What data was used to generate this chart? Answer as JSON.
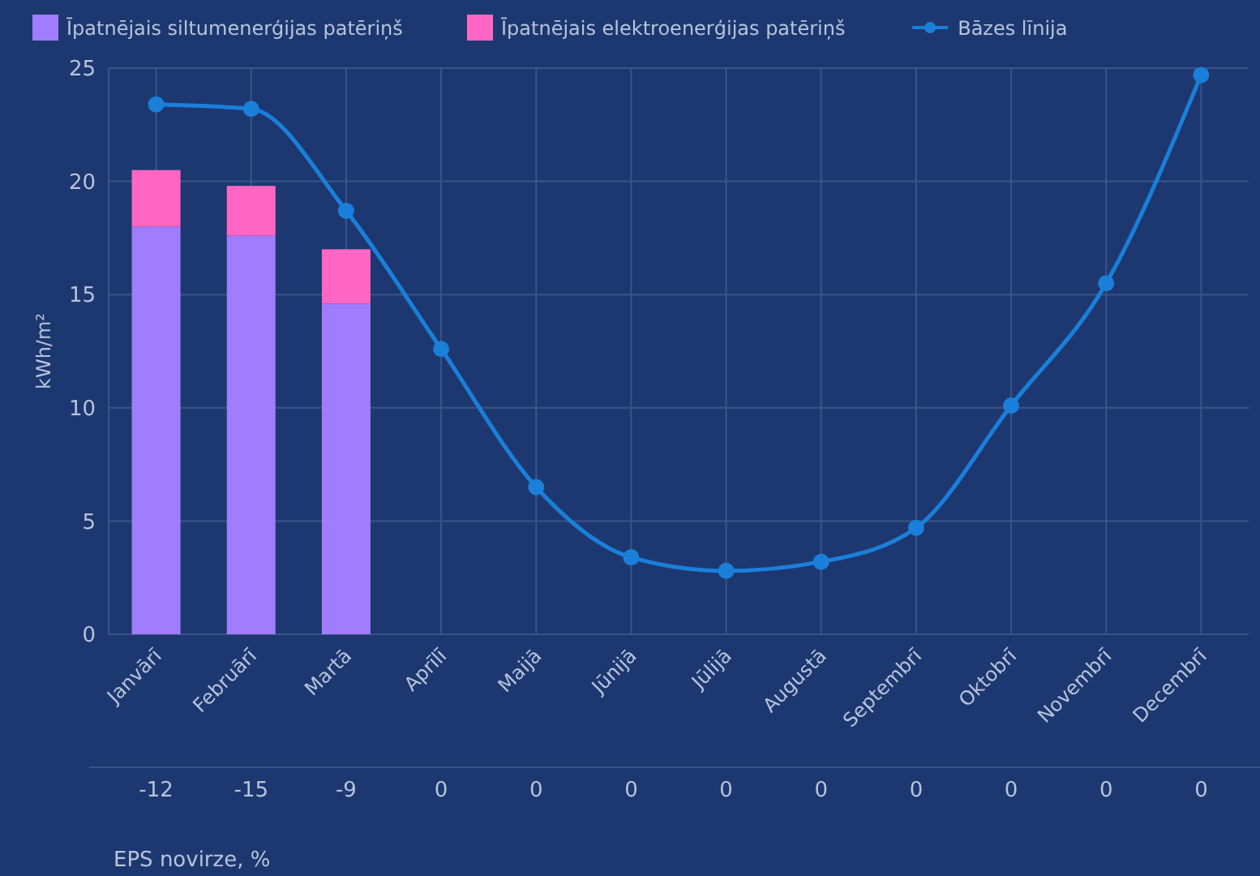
{
  "chart_data": {
    "type": "bar",
    "stacked": true,
    "ylabel": "kWh/m²",
    "categories": [
      "Janvārī",
      "Februārī",
      "Martā",
      "Aprīlī",
      "Maijā",
      "Jūnijā",
      "Jūlijā",
      "Augustā",
      "Septembrī",
      "Oktobrī",
      "Novembrī",
      "Decembrī"
    ],
    "series": [
      {
        "name": "Īpatnējais siltumenerģijas patēriņš",
        "color": "#a07cfe",
        "values": [
          18.0,
          17.6,
          14.6,
          null,
          null,
          null,
          null,
          null,
          null,
          null,
          null,
          null
        ]
      },
      {
        "name": "Īpatnējais elektroenerģijas patēriņš",
        "color": "#ff66c4",
        "values": [
          2.5,
          2.2,
          2.4,
          null,
          null,
          null,
          null,
          null,
          null,
          null,
          null,
          null
        ]
      },
      {
        "name": "Bāzes līnija",
        "type": "line",
        "color": "#1a7fd9",
        "marker": "circle",
        "values": [
          23.4,
          23.2,
          18.7,
          12.6,
          6.5,
          3.4,
          2.8,
          3.2,
          4.7,
          10.1,
          15.5,
          24.7
        ]
      }
    ],
    "ylim": [
      0,
      25
    ],
    "yticks": [
      0,
      5,
      10,
      15,
      20,
      25
    ],
    "grid": true,
    "legend": "top left",
    "annotations": [
      "-12",
      "-15",
      "-9",
      "0",
      "0",
      "0",
      "0",
      "0",
      "0",
      "0",
      "0",
      "0",
      "EPS novirze, %"
    ]
  }
}
